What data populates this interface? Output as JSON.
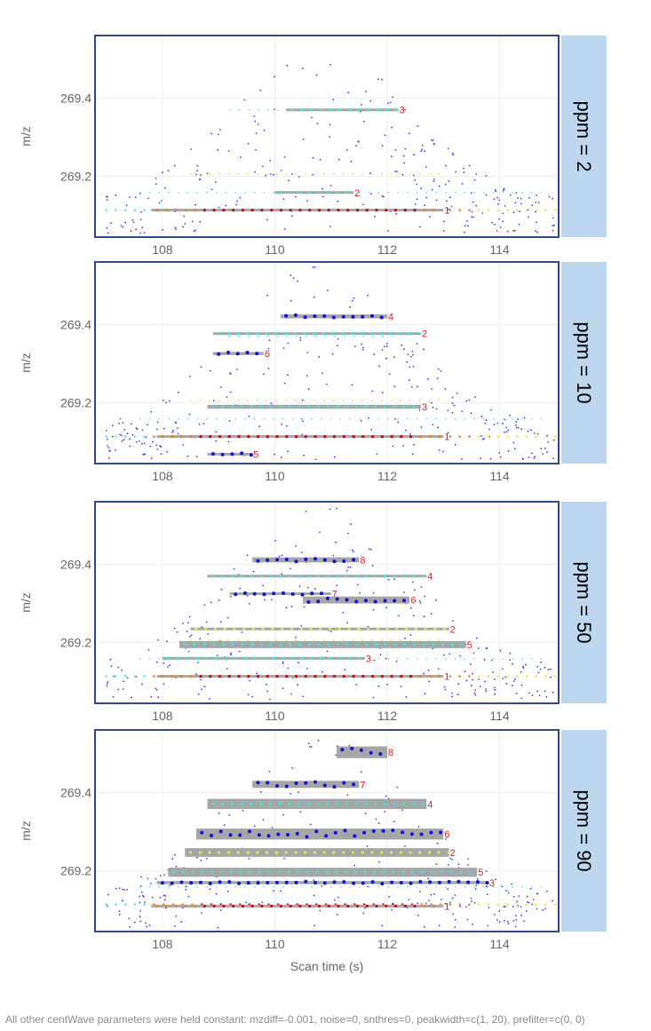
{
  "chart_data": {
    "type": "scatter",
    "xlabel": "Scan time (s)",
    "ylabel": "m/z",
    "xlim": [
      106.8,
      115.05
    ],
    "ylim": [
      269.045,
      269.56
    ],
    "xticks": [
      108,
      110,
      112,
      114
    ],
    "yticks": [
      269.2,
      269.4
    ],
    "ytick_labels": [
      "269.2",
      "269.4"
    ],
    "grid": true,
    "colors": {
      "frame": "#2e4a8c",
      "strip": "#bdd7ee",
      "feature": "#a6a6a6",
      "label": "#e8161b",
      "noise": "#3a3aee"
    },
    "traces": [
      {
        "mz": 269.114,
        "rt_from": 107.0,
        "rt_to": 115.0,
        "profile": "intense"
      },
      {
        "mz": 269.159,
        "rt_from": 107.6,
        "rt_to": 114.8,
        "profile": "cyan"
      },
      {
        "mz": 269.206,
        "rt_from": 108.5,
        "rt_to": 113.0,
        "profile": "yellow"
      },
      {
        "mz": 269.37,
        "rt_from": 109.2,
        "rt_to": 112.2,
        "profile": "cyan"
      }
    ],
    "panels": [
      {
        "strip": "ppm = 2",
        "features": [
          {
            "id": "1",
            "rtmin": 107.8,
            "rtmax": 113.0,
            "mzmin": 269.112,
            "mzmax": 269.116,
            "points": "red"
          },
          {
            "id": "2",
            "rtmin": 110.0,
            "rtmax": 111.4,
            "mzmin": 269.157,
            "mzmax": 269.161,
            "points": "cyan"
          },
          {
            "id": "3",
            "rtmin": 110.2,
            "rtmax": 112.2,
            "mzmin": 269.368,
            "mzmax": 269.372,
            "points": "cyan"
          }
        ]
      },
      {
        "strip": "ppm = 10",
        "features": [
          {
            "id": "4",
            "rtmin": 110.1,
            "rtmax": 112.0,
            "mzmin": 269.416,
            "mzmax": 269.426,
            "points": "blue"
          },
          {
            "id": "2",
            "rtmin": 108.9,
            "rtmax": 112.6,
            "mzmin": 269.374,
            "mzmax": 269.38,
            "points": "cyan"
          },
          {
            "id": "6",
            "rtmin": 108.9,
            "rtmax": 109.8,
            "mzmin": 269.322,
            "mzmax": 269.33,
            "points": "blue"
          },
          {
            "id": "3",
            "rtmin": 108.8,
            "rtmax": 112.6,
            "mzmin": 269.185,
            "mzmax": 269.195,
            "points": "cyan"
          },
          {
            "id": "1",
            "rtmin": 107.9,
            "rtmax": 113.0,
            "mzmin": 269.112,
            "mzmax": 269.116,
            "points": "red"
          },
          {
            "id": "5",
            "rtmin": 108.8,
            "rtmax": 109.6,
            "mzmin": 269.066,
            "mzmax": 269.072,
            "points": "blue"
          }
        ]
      },
      {
        "strip": "ppm = 50",
        "features": [
          {
            "id": "8",
            "rtmin": 109.6,
            "rtmax": 111.5,
            "mzmin": 269.405,
            "mzmax": 269.418,
            "points": "blue"
          },
          {
            "id": "4",
            "rtmin": 108.8,
            "rtmax": 112.7,
            "mzmin": 269.367,
            "mzmax": 269.373,
            "points": "cyan"
          },
          {
            "id": "7",
            "rtmin": 109.2,
            "rtmax": 111.0,
            "mzmin": 269.322,
            "mzmax": 269.328,
            "points": "blue"
          },
          {
            "id": "6",
            "rtmin": 110.5,
            "rtmax": 112.4,
            "mzmin": 269.3,
            "mzmax": 269.318,
            "points": "blue"
          },
          {
            "id": "2",
            "rtmin": 108.5,
            "rtmax": 113.1,
            "mzmin": 269.232,
            "mzmax": 269.238,
            "points": "yellow"
          },
          {
            "id": "5",
            "rtmin": 108.3,
            "rtmax": 113.4,
            "mzmin": 269.186,
            "mzmax": 269.204,
            "points": "cyan"
          },
          {
            "id": "3",
            "rtmin": 108.0,
            "rtmax": 111.6,
            "mzmin": 269.157,
            "mzmax": 269.163,
            "points": "cyan"
          },
          {
            "id": "1",
            "rtmin": 107.9,
            "rtmax": 113.0,
            "mzmin": 269.112,
            "mzmax": 269.116,
            "points": "red"
          }
        ]
      },
      {
        "strip": "ppm = 90",
        "features": [
          {
            "id": "8",
            "rtmin": 111.1,
            "rtmax": 112.0,
            "mzmin": 269.488,
            "mzmax": 269.518,
            "points": "blue"
          },
          {
            "id": "7",
            "rtmin": 109.6,
            "rtmax": 111.5,
            "mzmin": 269.412,
            "mzmax": 269.43,
            "points": "blue"
          },
          {
            "id": "4",
            "rtmin": 108.8,
            "rtmax": 112.7,
            "mzmin": 269.358,
            "mzmax": 269.384,
            "points": "cyan"
          },
          {
            "id": "6",
            "rtmin": 108.6,
            "rtmax": 113.0,
            "mzmin": 269.28,
            "mzmax": 269.308,
            "points": "blue"
          },
          {
            "id": "2",
            "rtmin": 108.4,
            "rtmax": 113.1,
            "mzmin": 269.236,
            "mzmax": 269.258,
            "points": "yellow"
          },
          {
            "id": "5",
            "rtmin": 108.1,
            "rtmax": 113.6,
            "mzmin": 269.185,
            "mzmax": 269.208,
            "points": "cyan"
          },
          {
            "id": "3",
            "rtmin": 107.9,
            "rtmax": 113.8,
            "mzmin": 269.166,
            "mzmax": 269.174,
            "points": "blue"
          },
          {
            "id": "1",
            "rtmin": 107.8,
            "rtmax": 113.0,
            "mzmin": 269.107,
            "mzmax": 269.113,
            "points": "red"
          }
        ]
      }
    ]
  },
  "caption": "All other centWave parameters were held constant: mzdiff=-0.001, noise=0, snthres=0, peakwidth=c(1, 20),  prefilter=c(0, 0)"
}
